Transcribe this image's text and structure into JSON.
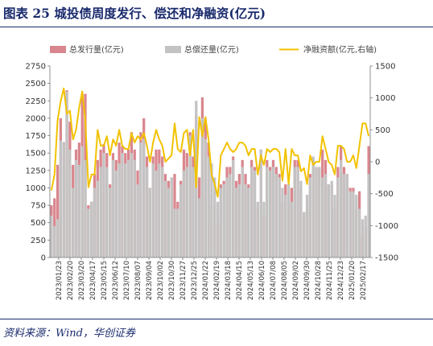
{
  "figure": {
    "title": "图表 25   城投债周度发行、偿还和净融资(亿元)",
    "source": "资料来源：Wind，华创证券"
  },
  "chart_data": {
    "type": "bar",
    "legend": {
      "placement": "top",
      "issuance": "总发行量(亿元)",
      "repayment": "总偿还量(亿元)",
      "net": "净融资额(亿元,右轴)"
    },
    "colors": {
      "issuance": "#d9868e",
      "repayment": "#c3c3c3",
      "net": "#f2c200"
    },
    "y_left": {
      "min": 0,
      "max": 2750,
      "ticks": [
        "0",
        "250",
        "500",
        "750",
        "1000",
        "1250",
        "1500",
        "1750",
        "2000",
        "2250",
        "2500",
        "2750"
      ]
    },
    "y_right": {
      "min": -1500,
      "max": 1500,
      "ticks": [
        "-1500",
        "-1000",
        "-500",
        "0",
        "500",
        "1000",
        "1500"
      ]
    },
    "x_tick_labels": [
      "2023/01/23",
      "2023/02/20",
      "2023/03/20",
      "2023/04/17",
      "2023/05/15",
      "2023/06/12",
      "2023/07/10",
      "2023/08/07",
      "2023/09/04",
      "2023/10/02",
      "2023/10/30",
      "2023/11/27",
      "2023/12/25",
      "2024/01/22",
      "2024/02/19",
      "2024/03/18",
      "2024/04/15",
      "2024/05/13",
      "2024/06/10",
      "2024/07/08",
      "2024/08/05",
      "2024/09/02",
      "2024/09/30",
      "2024/10/28",
      "2024/11/25",
      "2024/12/23",
      "2025/01/20",
      "2025/02/17"
    ],
    "issuance": [
      750,
      850,
      1330,
      2000,
      1650,
      2400,
      1950,
      1330,
      1550,
      1650,
      2350,
      2350,
      750,
      800,
      1200,
      1400,
      1550,
      1630,
      1500,
      1050,
      1500,
      1400,
      1650,
      1600,
      1500,
      1550,
      1800,
      1550,
      1250,
      1800,
      2000,
      1450,
      1000,
      1450,
      1550,
      1550,
      1450,
      1200,
      1100,
      1150,
      1200,
      800,
      1100,
      1550,
      1500,
      1800,
      1450,
      2050,
      1150,
      2300,
      2000,
      1650,
      750,
      750,
      500,
      1050,
      1100,
      1300,
      1300,
      1450,
      1100,
      1200,
      1400,
      1200,
      1050,
      1400,
      1300,
      700,
      1550,
      600,
      1400,
      1300,
      1400,
      1300,
      1200,
      800,
      1050,
      800,
      1000,
      1400,
      1400,
      1000,
      650,
      700,
      1200,
      1400,
      1300,
      1300,
      1550,
      1400,
      1050,
      1050,
      700,
      1300,
      1600,
      1300,
      1200,
      1000,
      1000,
      700,
      950,
      300,
      450,
      1600
    ],
    "repayment": [
      600,
      450,
      550,
      1680,
      1660,
      2380,
      1550,
      1000,
      1400,
      1330,
      1600,
      1400,
      700,
      800,
      1000,
      1100,
      1300,
      1500,
      1300,
      1000,
      1400,
      1250,
      1350,
      1500,
      1350,
      1400,
      1500,
      1400,
      1050,
      1650,
      1700,
      1300,
      1000,
      1350,
      1250,
      1350,
      1300,
      1100,
      1000,
      1150,
      700,
      700,
      1050,
      1250,
      1300,
      1750,
      1300,
      2250,
      850,
      2000,
      1700,
      1450,
      1350,
      1150,
      800,
      1000,
      1050,
      1150,
      1200,
      1400,
      1000,
      1050,
      1300,
      1050,
      1000,
      1300,
      1250,
      800,
      1550,
      800,
      1300,
      1250,
      1300,
      1200,
      1150,
      1000,
      900,
      1050,
      800,
      1300,
      1300,
      1100,
      650,
      900,
      1150,
      1450,
      1300,
      1300,
      1150,
      1200,
      1050,
      1100,
      900,
      1150,
      1400,
      1200,
      1200,
      950,
      950,
      900,
      700,
      550,
      600,
      1200
    ],
    "net": [
      -450,
      -200,
      650,
      950,
      1150,
      750,
      800,
      350,
      500,
      850,
      1100,
      650,
      -400,
      -200,
      -200,
      500,
      250,
      250,
      400,
      100,
      350,
      250,
      500,
      250,
      200,
      200,
      450,
      300,
      400,
      350,
      450,
      250,
      0,
      300,
      500,
      350,
      250,
      0,
      50,
      100,
      600,
      200,
      150,
      450,
      500,
      100,
      500,
      -400,
      700,
      400,
      700,
      350,
      -200,
      -350,
      -550,
      100,
      200,
      300,
      200,
      150,
      200,
      300,
      300,
      250,
      100,
      200,
      200,
      -200,
      100,
      -50,
      200,
      150,
      200,
      200,
      150,
      -300,
      200,
      -350,
      200,
      100,
      100,
      -150,
      -100,
      -350,
      100,
      -50,
      0,
      0,
      400,
      200,
      0,
      -50,
      -200,
      250,
      250,
      200,
      0,
      0,
      100,
      -100,
      250,
      600,
      600,
      400
    ]
  }
}
